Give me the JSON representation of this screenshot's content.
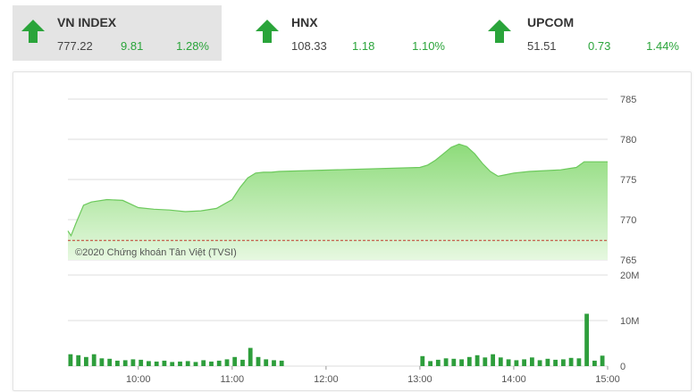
{
  "tickers": [
    {
      "name": "VN INDEX",
      "price": "777.22",
      "change": "9.81",
      "percent": "1.28%",
      "icon": "arrow-up-icon",
      "active": true
    },
    {
      "name": "HNX",
      "price": "108.33",
      "change": "1.18",
      "percent": "1.10%",
      "icon": "arrow-up-icon",
      "active": false
    },
    {
      "name": "UPCOM",
      "price": "51.51",
      "change": "0.73",
      "percent": "1.44%",
      "icon": "arrow-up-icon",
      "active": false
    }
  ],
  "colors": {
    "up": "#2aa43a",
    "area": "#9fe08f",
    "line": "#6cc95c",
    "reference": "#c0392b",
    "volume": "#2e9e3c"
  },
  "watermark": "©2020 Chứng khoán Tân Việt (TVSI)",
  "chart_data": [
    {
      "type": "area",
      "x_ticks": [
        "10:00",
        "11:00",
        "12:00",
        "13:00",
        "14:00",
        "15:00"
      ],
      "x_range": [
        "09:15",
        "15:00"
      ],
      "ylim": [
        765,
        785
      ],
      "y_ticks": [
        "785",
        "780",
        "775",
        "770",
        "765"
      ],
      "y_position": "right",
      "grid": true,
      "reference_value": 767.41,
      "series": [
        {
          "x": [
            "09:15",
            "09:17",
            "09:20",
            "09:25",
            "09:30",
            "09:40",
            "09:50",
            "10:00",
            "10:10",
            "10:20",
            "10:30",
            "10:40",
            "10:50",
            "11:00",
            "11:05",
            "11:10",
            "11:15",
            "11:20",
            "11:25",
            "11:30",
            "13:00",
            "13:05",
            "13:10",
            "13:15",
            "13:20",
            "13:25",
            "13:30",
            "13:35",
            "13:40",
            "13:45",
            "13:50",
            "13:55",
            "14:00",
            "14:10",
            "14:20",
            "14:30",
            "14:40",
            "14:45",
            "14:50",
            "15:00"
          ],
          "y": [
            768.6,
            768.0,
            769.5,
            771.8,
            772.2,
            772.5,
            772.4,
            771.5,
            771.3,
            771.2,
            771.0,
            771.1,
            771.4,
            772.5,
            774.0,
            775.2,
            775.8,
            775.9,
            775.9,
            776.0,
            776.5,
            776.8,
            777.4,
            778.2,
            779.0,
            779.4,
            779.1,
            778.2,
            777.0,
            776.0,
            775.4,
            775.6,
            775.8,
            776.0,
            776.1,
            776.2,
            776.5,
            777.2,
            777.2,
            777.2
          ]
        }
      ]
    },
    {
      "type": "bar",
      "series_name": "Volume",
      "ylim": [
        0,
        20000000
      ],
      "y_ticks": [
        "20M",
        "10M",
        "0"
      ],
      "x_ticks": [
        "10:00",
        "11:00",
        "12:00",
        "13:00",
        "14:00",
        "15:00"
      ],
      "x": [
        "09:15",
        "09:20",
        "09:25",
        "09:30",
        "09:35",
        "09:40",
        "09:45",
        "09:50",
        "09:55",
        "10:00",
        "10:05",
        "10:10",
        "10:15",
        "10:20",
        "10:25",
        "10:30",
        "10:35",
        "10:40",
        "10:45",
        "10:50",
        "10:55",
        "11:00",
        "11:05",
        "11:10",
        "11:15",
        "11:20",
        "11:25",
        "11:30",
        "13:00",
        "13:05",
        "13:10",
        "13:15",
        "13:20",
        "13:25",
        "13:30",
        "13:35",
        "13:40",
        "13:45",
        "13:50",
        "13:55",
        "14:00",
        "14:05",
        "14:10",
        "14:15",
        "14:20",
        "14:25",
        "14:30",
        "14:35",
        "14:40",
        "14:45",
        "14:50",
        "14:55"
      ],
      "values": [
        2600000,
        2400000,
        2000000,
        2600000,
        1700000,
        1600000,
        1200000,
        1300000,
        1500000,
        1400000,
        1100000,
        1000000,
        1200000,
        900000,
        1000000,
        1100000,
        900000,
        1300000,
        1000000,
        1200000,
        1500000,
        2000000,
        1400000,
        4000000,
        2000000,
        1500000,
        1300000,
        1200000,
        2200000,
        1100000,
        1400000,
        1700000,
        1600000,
        1500000,
        2000000,
        2400000,
        1900000,
        2600000,
        1900000,
        1500000,
        1300000,
        1500000,
        1900000,
        1300000,
        1600000,
        1400000,
        1500000,
        1800000,
        1700000,
        11500000,
        1200000,
        2300000
      ]
    }
  ]
}
